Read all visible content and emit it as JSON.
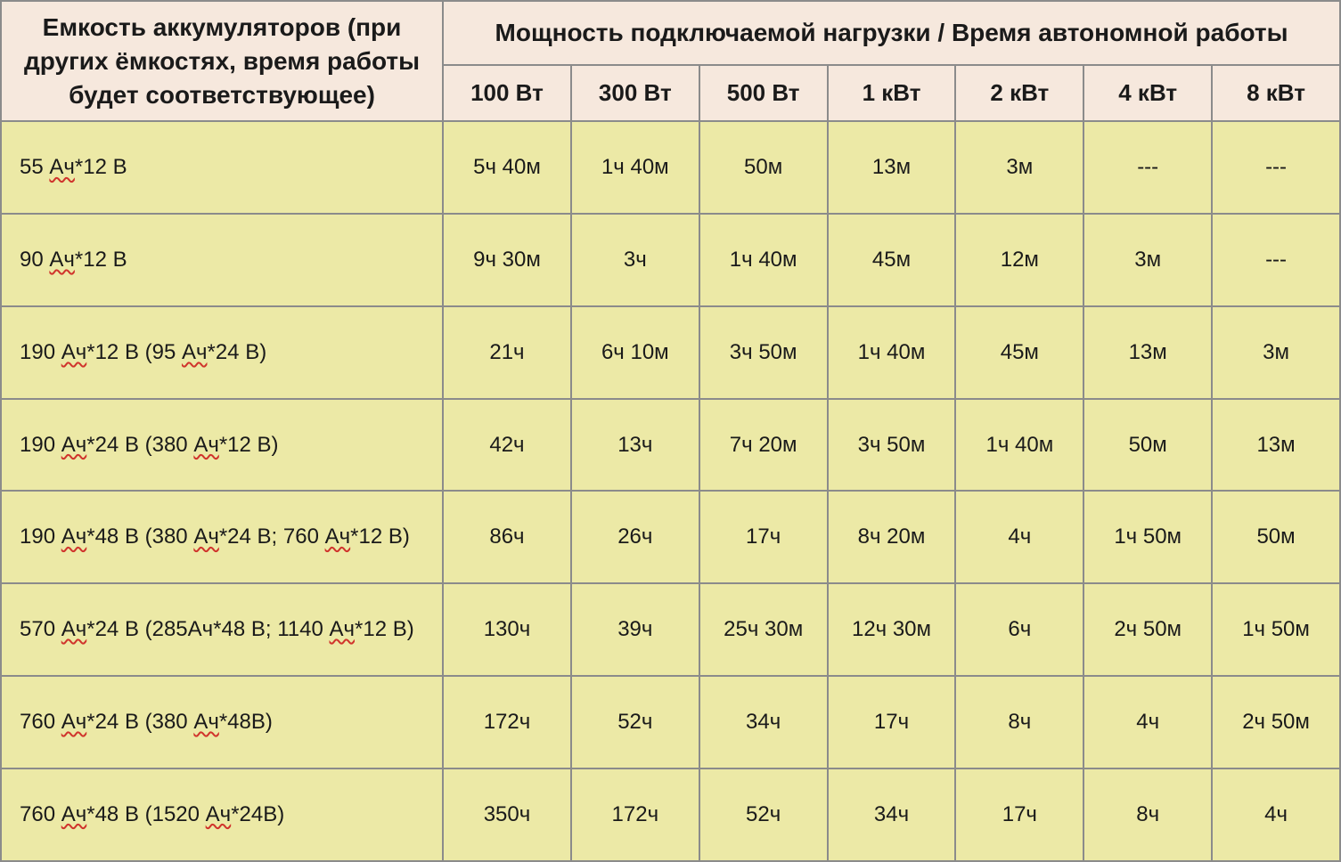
{
  "table": {
    "type": "table",
    "colors": {
      "header_bg": "#f6e8dd",
      "row_bg": "#ece9a6",
      "border": "#8b8b8b",
      "text": "#1a1a1a",
      "squiggle": "#d0342c"
    },
    "font": {
      "family": "Arial",
      "header_size_pt": 21,
      "cell_size_pt": 18
    },
    "header_capacity": "Емкость аккумуляторов (при других ёмкостях, время работы будет соответствующее)",
    "header_power_group": "Мощность подключаемой нагрузки / Время автономной работы",
    "power_columns": [
      "100 Вт",
      "300 Вт",
      "500 Вт",
      "1 кВт",
      "2 кВт",
      "4 кВт",
      "8 кВт"
    ],
    "column_widths_pct": [
      33,
      9.57,
      9.57,
      9.57,
      9.57,
      9.57,
      9.57,
      9.57
    ],
    "rows": [
      {
        "label_parts": [
          "55 ",
          {
            "sq": "Ач"
          },
          "*12 В"
        ],
        "cells": [
          "5ч 40м",
          "1ч 40м",
          "50м",
          "13м",
          "3м",
          "---",
          "---"
        ]
      },
      {
        "label_parts": [
          "90 ",
          {
            "sq": "Ач"
          },
          "*12 В"
        ],
        "cells": [
          "9ч 30м",
          "3ч",
          "1ч 40м",
          "45м",
          "12м",
          "3м",
          "---"
        ]
      },
      {
        "label_parts": [
          "190 ",
          {
            "sq": "Ач"
          },
          "*12 В (95 ",
          {
            "sq": "Ач"
          },
          "*24 В)"
        ],
        "cells": [
          "21ч",
          "6ч 10м",
          "3ч 50м",
          "1ч 40м",
          "45м",
          "13м",
          "3м"
        ]
      },
      {
        "label_parts": [
          "190 ",
          {
            "sq": "Ач"
          },
          "*24 В (380 ",
          {
            "sq": "Ач"
          },
          "*12 В)"
        ],
        "cells": [
          "42ч",
          "13ч",
          "7ч 20м",
          "3ч 50м",
          "1ч 40м",
          "50м",
          "13м"
        ]
      },
      {
        "label_parts": [
          "190 ",
          {
            "sq": "Ач"
          },
          "*48 В (380 ",
          {
            "sq": "Ач"
          },
          "*24 В; 760 ",
          {
            "sq": "Ач"
          },
          "*12 В)"
        ],
        "cells": [
          "86ч",
          "26ч",
          "17ч",
          "8ч 20м",
          "4ч",
          "1ч 50м",
          "50м"
        ]
      },
      {
        "label_parts": [
          "570 ",
          {
            "sq": "Ач"
          },
          "*24 В  (285Ач*48 В; 1140 ",
          {
            "sq": "Ач"
          },
          "*12 В)"
        ],
        "cells": [
          "130ч",
          "39ч",
          "25ч 30м",
          "12ч 30м",
          "6ч",
          "2ч 50м",
          "1ч 50м"
        ]
      },
      {
        "label_parts": [
          "760 ",
          {
            "sq": "Ач"
          },
          "*24 В (380 ",
          {
            "sq": "Ач"
          },
          "*48В)"
        ],
        "cells": [
          "172ч",
          "52ч",
          "34ч",
          "17ч",
          "8ч",
          "4ч",
          "2ч 50м"
        ]
      },
      {
        "label_parts": [
          "760 ",
          {
            "sq": "Ач"
          },
          "*48 В (1520 ",
          {
            "sq": "Ач"
          },
          "*24В)"
        ],
        "cells": [
          "350ч",
          "172ч",
          "52ч",
          "34ч",
          "17ч",
          "8ч",
          "4ч"
        ]
      }
    ]
  }
}
